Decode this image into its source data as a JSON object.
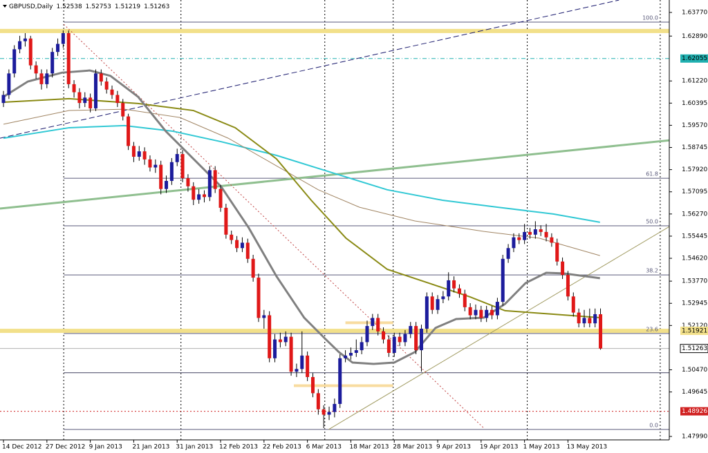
{
  "chart_data": {
    "type": "candlestick",
    "symbol": "GBPUSD,Daily",
    "bull_color": "#1c1c9c",
    "bear_color": "#e01818",
    "xlim": [
      -0.64,
      122.67
    ],
    "ylim": [
      1.47862,
      1.64233
    ],
    "xticks": [
      {
        "value": 0,
        "label": "14 Dec 2012"
      },
      {
        "value": 8,
        "label": "27 Dec 2012"
      },
      {
        "value": 16,
        "label": "9 Jan 2013"
      },
      {
        "value": 24,
        "label": "21 Jan 2013"
      },
      {
        "value": 32,
        "label": "31 Jan 2013"
      },
      {
        "value": 40,
        "label": "12 Feb 2013"
      },
      {
        "value": 48,
        "label": "22 Feb 2013"
      },
      {
        "value": 56,
        "label": "6 Mar 2013"
      },
      {
        "value": 64,
        "label": "18 Mar 2013"
      },
      {
        "value": 72,
        "label": "28 Mar 2013"
      },
      {
        "value": 80,
        "label": "9 Apr 2013"
      },
      {
        "value": 88,
        "label": "19 Apr 2013"
      },
      {
        "value": 96,
        "label": "1 May 2013"
      },
      {
        "value": 104,
        "label": "13 May 2013"
      }
    ],
    "yticks": [
      {
        "value": 1.6377,
        "label": "1.63770"
      },
      {
        "value": 1.6289,
        "label": "1.62890"
      },
      {
        "value": 1.6122,
        "label": "1.61220"
      },
      1.60395,
      {
        "value": 1.5957,
        "label": "1.59570"
      },
      1.58745,
      {
        "value": 1.5792,
        "label": "1.57920"
      },
      1.57095,
      {
        "value": 1.5627,
        "label": "1.56270"
      },
      1.55445,
      {
        "value": 1.5462,
        "label": "1.54620"
      },
      {
        "value": 1.5377,
        "label": "1.53770"
      },
      1.52945,
      {
        "value": 1.5212,
        "label": "1.52120"
      },
      {
        "value": 1.5047,
        "label": "1.50470"
      },
      1.49645,
      {
        "value": 1.4799,
        "label": "1.47990"
      }
    ],
    "candles": [
      [
        1.604,
        1.6085,
        1.6025,
        1.607
      ],
      [
        1.607,
        1.6165,
        1.6055,
        1.615
      ],
      [
        1.615,
        1.6255,
        1.6135,
        1.624
      ],
      [
        1.624,
        1.629,
        1.6225,
        1.627
      ],
      [
        1.627,
        1.63,
        1.625,
        1.628
      ],
      [
        1.628,
        1.629,
        1.6165,
        1.618
      ],
      [
        1.618,
        1.6195,
        1.613,
        1.615
      ],
      [
        1.615,
        1.6165,
        1.609,
        1.611
      ],
      [
        1.611,
        1.6165,
        1.6095,
        1.615
      ],
      [
        1.615,
        1.6245,
        1.6135,
        1.623
      ],
      [
        1.623,
        1.628,
        1.6215,
        1.626
      ],
      [
        1.626,
        1.631,
        1.6245,
        1.63
      ],
      [
        1.63,
        1.631,
        1.6095,
        1.611
      ],
      [
        1.611,
        1.6125,
        1.606,
        1.608
      ],
      [
        1.608,
        1.6095,
        1.602,
        1.604
      ],
      [
        1.604,
        1.608,
        1.6025,
        1.606
      ],
      [
        1.606,
        1.6075,
        1.6005,
        1.602
      ],
      [
        1.602,
        1.6165,
        1.601,
        1.615
      ],
      [
        1.615,
        1.6165,
        1.6105,
        1.612
      ],
      [
        1.612,
        1.6135,
        1.6075,
        1.609
      ],
      [
        1.609,
        1.6105,
        1.6055,
        1.607
      ],
      [
        1.607,
        1.6085,
        1.6025,
        1.604
      ],
      [
        1.604,
        1.6055,
        1.5975,
        1.599
      ],
      [
        1.599,
        1.6,
        1.5865,
        1.588
      ],
      [
        1.588,
        1.5895,
        1.582,
        1.584
      ],
      [
        1.584,
        1.588,
        1.5825,
        1.586
      ],
      [
        1.586,
        1.5875,
        1.581,
        1.583
      ],
      [
        1.583,
        1.5845,
        1.5785,
        1.58
      ],
      [
        1.58,
        1.583,
        1.578,
        1.581
      ],
      [
        1.581,
        1.5825,
        1.57,
        1.572
      ],
      [
        1.572,
        1.577,
        1.5705,
        1.575
      ],
      [
        1.575,
        1.5835,
        1.5735,
        1.582
      ],
      [
        1.582,
        1.587,
        1.5805,
        1.585
      ],
      [
        1.585,
        1.5865,
        1.5745,
        1.576
      ],
      [
        1.576,
        1.5775,
        1.571,
        1.573
      ],
      [
        1.573,
        1.5745,
        1.566,
        1.568
      ],
      [
        1.568,
        1.572,
        1.5665,
        1.57
      ],
      [
        1.57,
        1.5715,
        1.567,
        1.569
      ],
      [
        1.569,
        1.5805,
        1.5675,
        1.579
      ],
      [
        1.579,
        1.5805,
        1.5705,
        1.572
      ],
      [
        1.572,
        1.5735,
        1.5635,
        1.565
      ],
      [
        1.565,
        1.5665,
        1.5535,
        1.555
      ],
      [
        1.555,
        1.5565,
        1.5515,
        1.553
      ],
      [
        1.553,
        1.5545,
        1.5485,
        1.55
      ],
      [
        1.55,
        1.554,
        1.5485,
        1.552
      ],
      [
        1.552,
        1.5535,
        1.5445,
        1.546
      ],
      [
        1.546,
        1.5475,
        1.5375,
        1.539
      ],
      [
        1.539,
        1.5405,
        1.5225,
        1.524
      ],
      [
        1.524,
        1.527,
        1.52,
        1.525
      ],
      [
        1.525,
        1.5265,
        1.5075,
        1.509
      ],
      [
        1.509,
        1.518,
        1.5075,
        1.516
      ],
      [
        1.516,
        1.5185,
        1.513,
        1.515
      ],
      [
        1.515,
        1.519,
        1.5135,
        1.517
      ],
      [
        1.517,
        1.5185,
        1.5025,
        1.504
      ],
      [
        1.504,
        1.507,
        1.502,
        1.505
      ],
      [
        1.505,
        1.519,
        1.5035,
        1.51
      ],
      [
        1.51,
        1.5115,
        1.5005,
        1.502
      ],
      [
        1.502,
        1.5035,
        1.4945,
        1.496
      ],
      [
        1.496,
        1.4975,
        1.488,
        1.49
      ],
      [
        1.49,
        1.4915,
        1.483,
        1.488
      ],
      [
        1.488,
        1.491,
        1.486,
        1.489
      ],
      [
        1.489,
        1.494,
        1.487,
        1.492
      ],
      [
        1.492,
        1.5105,
        1.4905,
        1.509
      ],
      [
        1.509,
        1.512,
        1.5075,
        1.51
      ],
      [
        1.51,
        1.513,
        1.5085,
        1.511
      ],
      [
        1.511,
        1.516,
        1.5095,
        1.512
      ],
      [
        1.512,
        1.517,
        1.5105,
        1.515
      ],
      [
        1.515,
        1.523,
        1.5135,
        1.521
      ],
      [
        1.521,
        1.5255,
        1.5195,
        1.524
      ],
      [
        1.524,
        1.5255,
        1.5175,
        1.519
      ],
      [
        1.519,
        1.5205,
        1.5145,
        1.516
      ],
      [
        1.516,
        1.5175,
        1.5095,
        1.511
      ],
      [
        1.511,
        1.5185,
        1.5095,
        1.517
      ],
      [
        1.517,
        1.5185,
        1.5135,
        1.515
      ],
      [
        1.515,
        1.5195,
        1.5135,
        1.518
      ],
      [
        1.518,
        1.5225,
        1.5165,
        1.521
      ],
      [
        1.521,
        1.5225,
        1.5105,
        1.512
      ],
      [
        1.512,
        1.5215,
        1.504,
        1.52
      ],
      [
        1.52,
        1.5335,
        1.5185,
        1.532
      ],
      [
        1.532,
        1.5335,
        1.5255,
        1.527
      ],
      [
        1.527,
        1.5325,
        1.5255,
        1.531
      ],
      [
        1.531,
        1.534,
        1.5295,
        1.532
      ],
      [
        1.532,
        1.541,
        1.5305,
        1.538
      ],
      [
        1.538,
        1.5395,
        1.5335,
        1.535
      ],
      [
        1.535,
        1.5365,
        1.5315,
        1.533
      ],
      [
        1.533,
        1.5345,
        1.5265,
        1.528
      ],
      [
        1.528,
        1.5295,
        1.5235,
        1.525
      ],
      [
        1.525,
        1.529,
        1.5235,
        1.527
      ],
      [
        1.527,
        1.5285,
        1.5225,
        1.524
      ],
      [
        1.524,
        1.5285,
        1.5225,
        1.527
      ],
      [
        1.527,
        1.5285,
        1.5235,
        1.525
      ],
      [
        1.525,
        1.5315,
        1.5235,
        1.53
      ],
      [
        1.53,
        1.5475,
        1.5285,
        1.546
      ],
      [
        1.546,
        1.5515,
        1.5445,
        1.55
      ],
      [
        1.55,
        1.5555,
        1.5485,
        1.554
      ],
      [
        1.554,
        1.5555,
        1.5515,
        1.553
      ],
      [
        1.553,
        1.559,
        1.5515,
        1.556
      ],
      [
        1.556,
        1.5575,
        1.5535,
        1.555
      ],
      [
        1.555,
        1.56,
        1.5535,
        1.557
      ],
      [
        1.557,
        1.5585,
        1.5545,
        1.556
      ],
      [
        1.556,
        1.559,
        1.5525,
        1.554
      ],
      [
        1.554,
        1.5555,
        1.5505,
        1.552
      ],
      [
        1.552,
        1.5535,
        1.5435,
        1.545
      ],
      [
        1.545,
        1.5465,
        1.5385,
        1.54
      ],
      [
        1.54,
        1.5415,
        1.5305,
        1.532
      ],
      [
        1.532,
        1.5335,
        1.5245,
        1.526
      ],
      [
        1.526,
        1.5275,
        1.5205,
        1.522
      ],
      [
        1.522,
        1.527,
        1.5205,
        1.524
      ],
      [
        1.524,
        1.5275,
        1.5205,
        1.522
      ],
      [
        1.522,
        1.5275,
        1.5205,
        1.5254
      ],
      [
        1.52538,
        1.52753,
        1.51219,
        1.51263
      ]
    ],
    "moving_averages": [
      {
        "color": "#30c8d4",
        "width": 2,
        "x": [
          0,
          12.1,
          22.3,
          31.2,
          40.1,
          50.3,
          60.5,
          70.7,
          80.9,
          91.1,
          101.3,
          109.9
        ],
        "values": [
          1.5909,
          1.5948,
          1.5956,
          1.5935,
          1.5896,
          1.5845,
          1.5781,
          1.5717,
          1.5678,
          1.5652,
          1.5627,
          1.5596
        ]
      },
      {
        "color": "#a08462",
        "width": 1,
        "x": [
          0,
          12.1,
          22.3,
          32.5,
          41.4,
          50.3,
          58,
          65.6,
          75.8,
          88.5,
          98.7,
          109.9
        ],
        "values": [
          1.5961,
          1.6012,
          1.6017,
          1.5986,
          1.5909,
          1.5806,
          1.5717,
          1.5652,
          1.5601,
          1.5562,
          1.5537,
          1.5472
        ]
      },
      {
        "color": "#8a8a14",
        "width": 2,
        "x": [
          0,
          12.1,
          24.8,
          35,
          42.7,
          50.3,
          56.7,
          63.1,
          70.7,
          78.3,
          86,
          92.4,
          101.3,
          109.9
        ],
        "values": [
          1.6043,
          1.6056,
          1.6038,
          1.6012,
          1.5948,
          1.5832,
          1.5678,
          1.5537,
          1.5421,
          1.537,
          1.5318,
          1.5267,
          1.5254,
          1.5241
        ]
      },
      {
        "color": "#808080",
        "width": 3,
        "x": [
          0,
          4.5,
          10.8,
          15.9,
          19.7,
          24.8,
          29.9,
          35,
          40.1,
          45.2,
          50.3,
          55.4,
          59.2,
          61.8,
          64.3,
          68.2,
          72,
          75.8,
          79.6,
          83.4,
          88.5,
          92.4,
          96.2,
          100,
          103.2,
          109.9
        ],
        "values": [
          1.6063,
          1.612,
          1.6153,
          1.6161,
          1.6141,
          1.6063,
          1.5935,
          1.5832,
          1.5729,
          1.5575,
          1.5395,
          1.5241,
          1.5164,
          1.5113,
          1.5074,
          1.5069,
          1.5074,
          1.5113,
          1.5203,
          1.5236,
          1.5241,
          1.5292,
          1.537,
          1.5408,
          1.5406,
          1.5388
        ]
      }
    ],
    "trend_lines": [
      {
        "color": "#1a1a6e",
        "width": 1,
        "dash": "8 4",
        "x": [
          -0.64,
          113.4
        ],
        "values": [
          1.5909,
          1.6423
        ]
      },
      {
        "color": "#8fbf8f",
        "width": 3,
        "dash": "none",
        "x": [
          -0.64,
          122.67
        ],
        "values": [
          1.5647,
          1.5901
        ]
      },
      {
        "color": "#a09a60",
        "width": 1,
        "dash": "none",
        "x": [
          59.9,
          122.67
        ],
        "values": [
          1.4825,
          1.558
        ]
      },
      {
        "color": "#c04040",
        "width": 1,
        "dash": "2 3",
        "x": [
          11.1,
          88.5
        ],
        "values": [
          1.6333,
          1.483
        ]
      }
    ],
    "horizontal_lines": [
      {
        "price": 1.6308,
        "color": "#f2e08a",
        "width": 6,
        "dash": "none",
        "from": -0.64,
        "tag": false
      },
      {
        "price": 1.51921,
        "color": "#f2e08a",
        "width": 6,
        "dash": "none",
        "from": -0.64,
        "tag": true
      },
      {
        "price": 1.62055,
        "color": "#20b0b0",
        "width": 1,
        "dash": "6 3 1 3",
        "from": -0.64,
        "tag": true
      },
      {
        "price": 1.48926,
        "color": "#d02020",
        "width": 1,
        "dash": "2 3",
        "from": -0.64,
        "tag": true
      },
      {
        "price": 1.5036,
        "color": "#404060",
        "width": 1,
        "dash": "none",
        "from": 11.1,
        "tag": false
      }
    ],
    "short_lines": [
      {
        "price": 1.5222,
        "from": 63,
        "to": 71.8,
        "color": "#f8dca0"
      },
      {
        "price": 1.4988,
        "from": 53.5,
        "to": 71.8,
        "color": "#f8dca0"
      }
    ],
    "vertical_lines": [
      11.1,
      32.7,
      59.2,
      71.8,
      96.5,
      121.0
    ],
    "fibo": {
      "from": 11.1,
      "color": "#5a5a7a",
      "levels": [
        {
          "label": "100.0",
          "price": 1.6341
        },
        {
          "label": "61.8",
          "price": 1.576
        },
        {
          "label": "50.0",
          "price": 1.5583
        },
        {
          "label": "38.2",
          "price": 1.54
        },
        {
          "label": "23.6",
          "price": 1.5182
        },
        {
          "label": "0.0",
          "price": 1.4825
        }
      ]
    }
  }
}
